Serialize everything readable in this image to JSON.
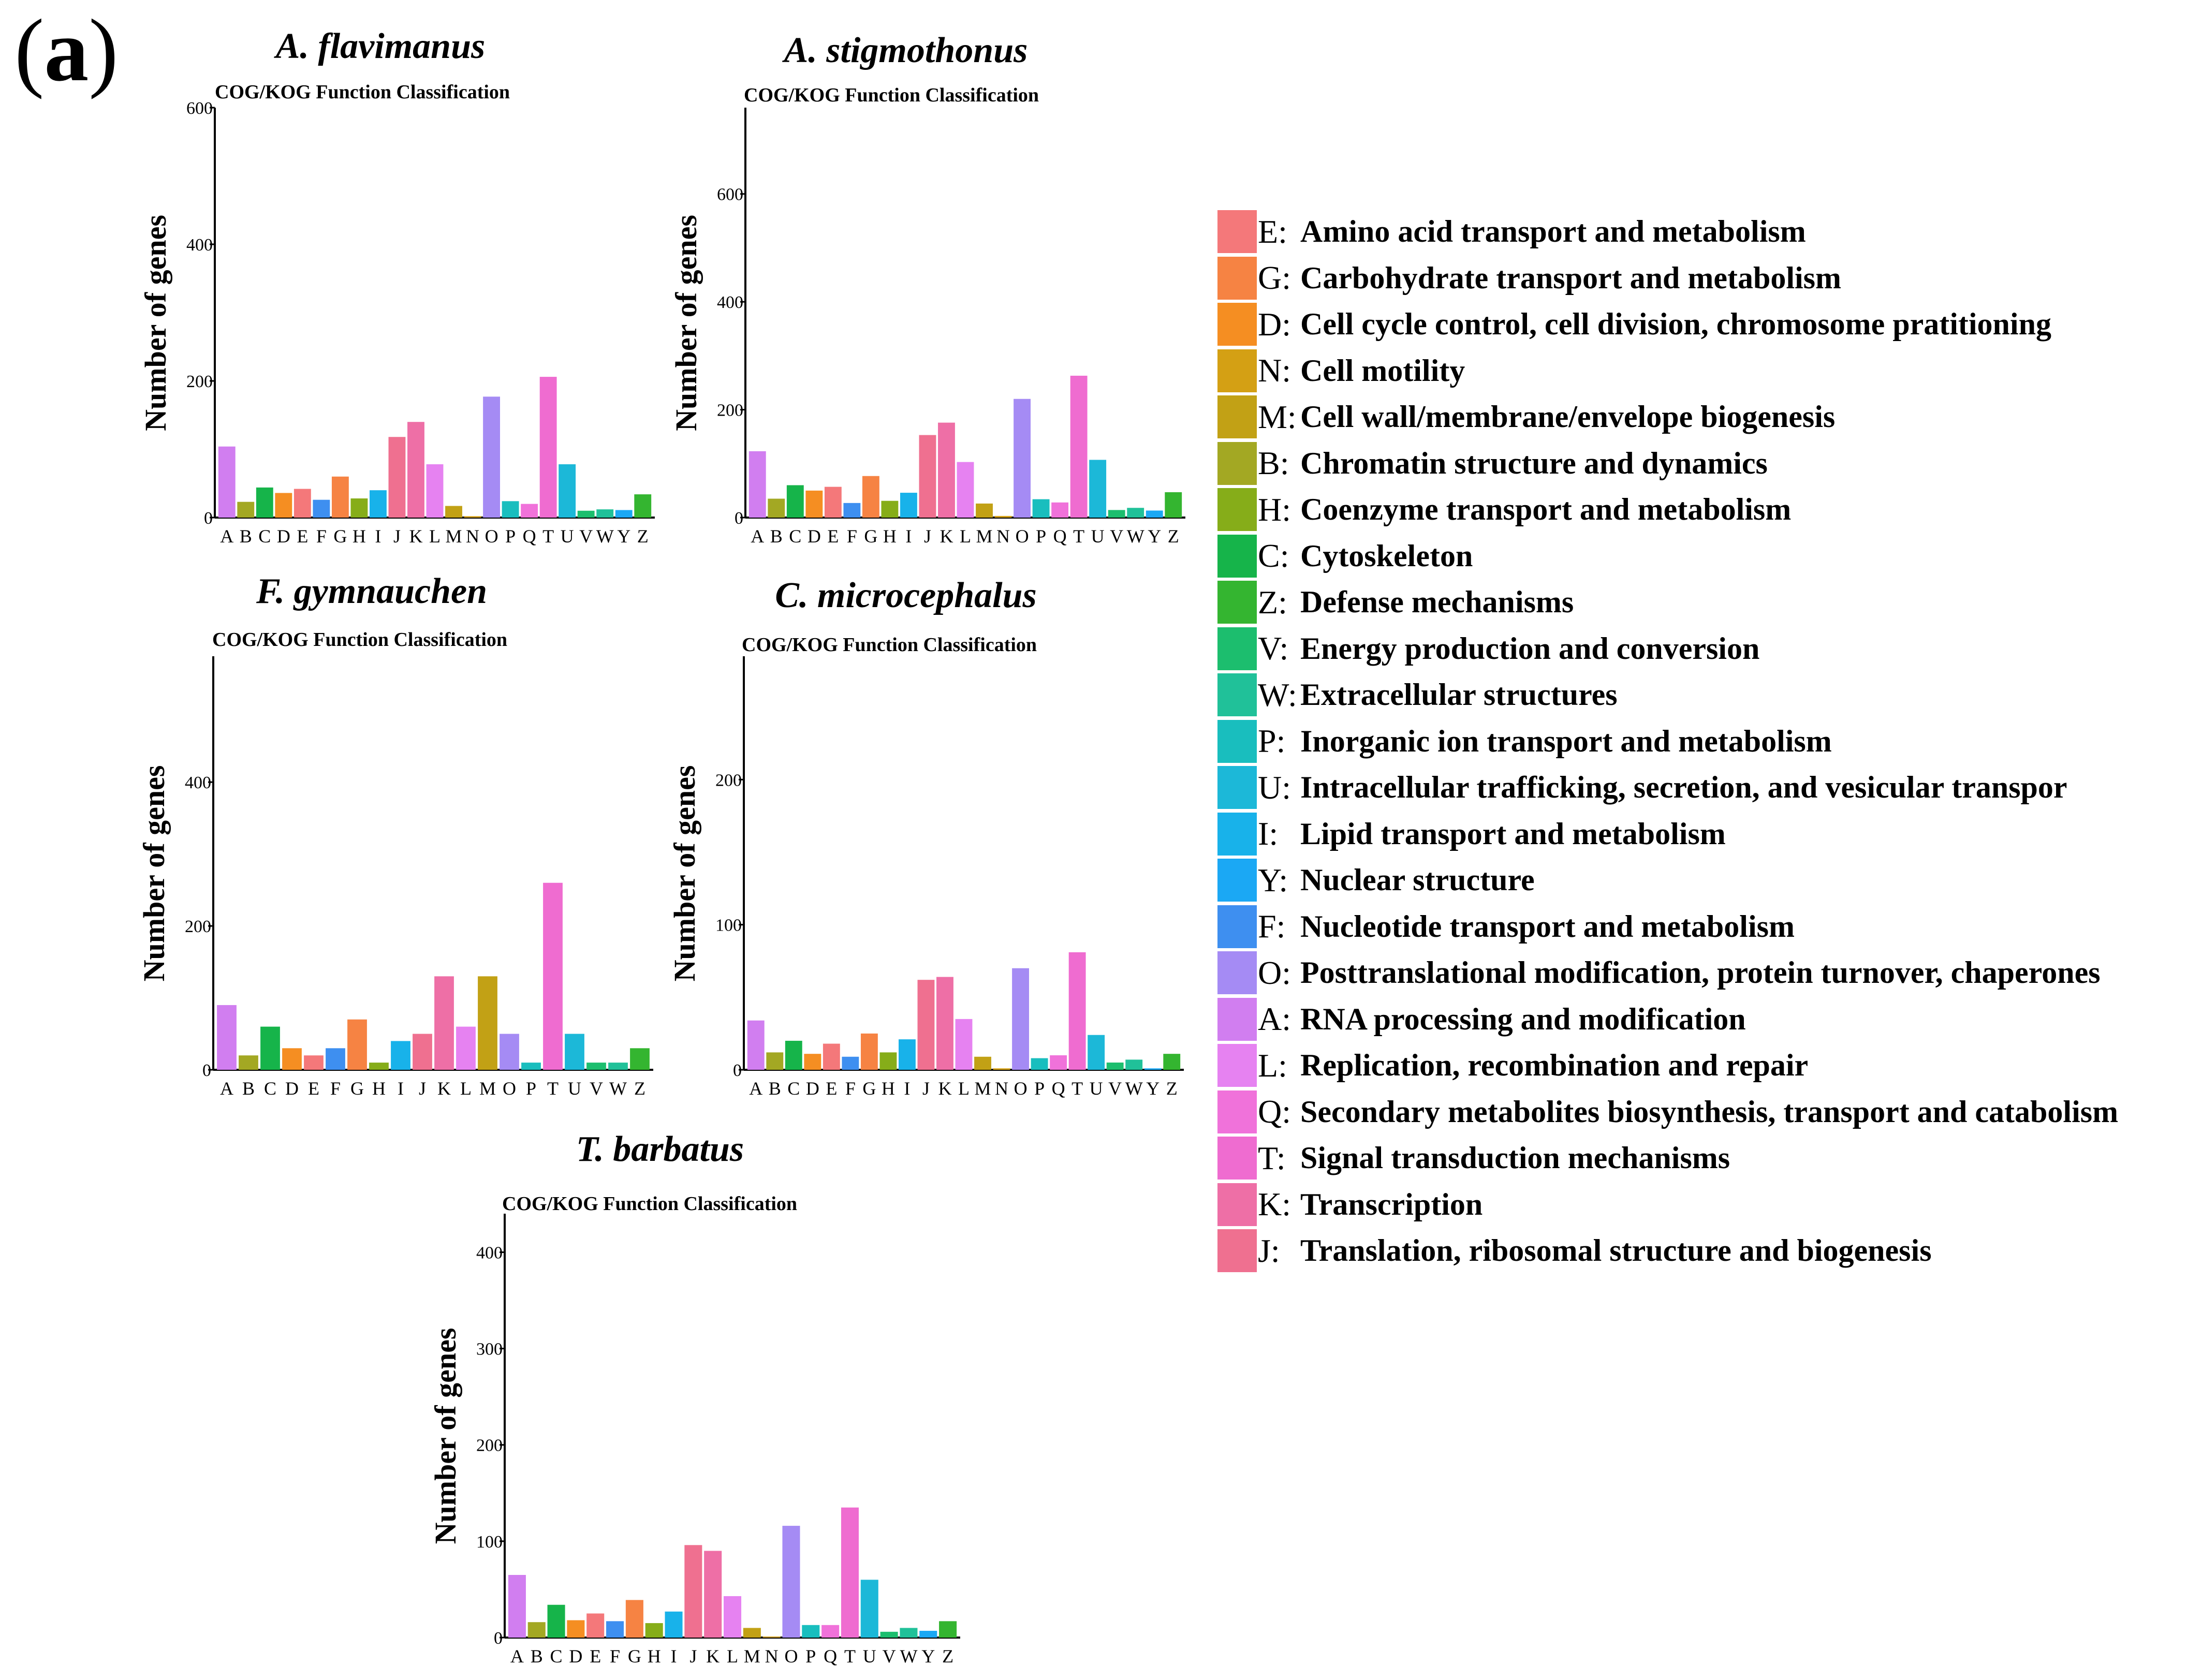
{
  "figure": {
    "panel_label_open": "(",
    "panel_label_letter": "a",
    "panel_label_close": ")"
  },
  "colors": {
    "A": "#D17EF0",
    "B": "#A3A823",
    "C": "#16B44A",
    "D": "#F58E22",
    "E": "#F4787A",
    "F": "#3E8FF0",
    "G": "#F68343",
    "H": "#86AD19",
    "I": "#18B2EA",
    "J": "#EF7090",
    "K": "#EE6FA6",
    "L": "#E682F1",
    "M": "#C2A115",
    "N": "#D4A014",
    "O": "#A58BF4",
    "P": "#19BEBE",
    "Q": "#F072DA",
    "T": "#EF6CD0",
    "U": "#1CB8D8",
    "V": "#1CBE6E",
    "W": "#20C199",
    "Y": "#1BA8F4",
    "Z": "#34B530"
  },
  "chart_data": [
    {
      "type": "bar",
      "species": "A. flavimanus",
      "title": "COG/KOG Function Classification",
      "xlabel": "",
      "ylabel": "Number of genes",
      "ylim": [
        0,
        600
      ],
      "yticks": [
        0,
        200,
        400,
        600
      ],
      "categories": [
        "A",
        "B",
        "C",
        "D",
        "E",
        "F",
        "G",
        "H",
        "I",
        "J",
        "K",
        "L",
        "M",
        "N",
        "O",
        "P",
        "Q",
        "T",
        "U",
        "V",
        "W",
        "Y",
        "Z"
      ],
      "values": [
        104,
        23,
        44,
        36,
        42,
        26,
        60,
        28,
        40,
        118,
        140,
        78,
        17,
        2,
        177,
        24,
        20,
        206,
        78,
        10,
        12,
        11,
        34
      ]
    },
    {
      "type": "bar",
      "species": "A. stigmothonus",
      "title": "COG/KOG Function Classification",
      "xlabel": "",
      "ylabel": "Number of genes",
      "ylim": [
        0,
        760
      ],
      "yticks": [
        0,
        200,
        400,
        600
      ],
      "categories": [
        "A",
        "B",
        "C",
        "D",
        "E",
        "F",
        "G",
        "H",
        "I",
        "J",
        "K",
        "L",
        "M",
        "N",
        "O",
        "P",
        "Q",
        "T",
        "U",
        "V",
        "W",
        "Y",
        "Z"
      ],
      "values": [
        123,
        35,
        60,
        50,
        57,
        27,
        77,
        31,
        46,
        153,
        176,
        103,
        26,
        3,
        220,
        34,
        28,
        263,
        107,
        14,
        18,
        13,
        47
      ]
    },
    {
      "type": "bar",
      "species": "F. gymnauchen",
      "title": "COG/KOG Function Classification",
      "xlabel": "",
      "ylabel": "Number of genes",
      "ylim": [
        0,
        575
      ],
      "yticks": [
        0,
        200,
        400
      ],
      "categories": [
        "A",
        "B",
        "C",
        "D",
        "E",
        "F",
        "G",
        "H",
        "I",
        "J",
        "K",
        "L",
        "M",
        "O",
        "P",
        "T",
        "U",
        "V",
        "W",
        "Z"
      ],
      "values": [
        90,
        20,
        60,
        30,
        20,
        30,
        70,
        10,
        40,
        50,
        130,
        60,
        130,
        50,
        10,
        260,
        50,
        10,
        10,
        30
      ]
    },
    {
      "type": "bar",
      "species": "C. microcephalus",
      "title": "COG/KOG Function Classification",
      "xlabel": "",
      "ylabel": "Number of genes",
      "ylim": [
        0,
        285
      ],
      "yticks": [
        0,
        100,
        200
      ],
      "categories": [
        "A",
        "B",
        "C",
        "D",
        "E",
        "F",
        "G",
        "H",
        "I",
        "J",
        "K",
        "L",
        "M",
        "N",
        "O",
        "P",
        "Q",
        "T",
        "U",
        "V",
        "W",
        "Y",
        "Z"
      ],
      "values": [
        34,
        12,
        20,
        11,
        18,
        9,
        25,
        12,
        21,
        62,
        64,
        35,
        9,
        1,
        70,
        8,
        10,
        81,
        24,
        5,
        7,
        1,
        11
      ]
    },
    {
      "type": "bar",
      "species": "T. barbatus",
      "title": "COG/KOG Function Classification",
      "xlabel": "",
      "ylabel": "Number of genes",
      "ylim": [
        0,
        440
      ],
      "yticks": [
        0,
        100,
        200,
        300,
        400
      ],
      "categories": [
        "A",
        "B",
        "C",
        "D",
        "E",
        "F",
        "G",
        "H",
        "I",
        "J",
        "K",
        "L",
        "M",
        "N",
        "O",
        "P",
        "Q",
        "T",
        "U",
        "V",
        "W",
        "Y",
        "Z"
      ],
      "values": [
        65,
        16,
        34,
        18,
        25,
        17,
        39,
        15,
        27,
        96,
        90,
        43,
        10,
        1,
        116,
        13,
        13,
        135,
        60,
        6,
        10,
        7,
        17
      ]
    }
  ],
  "legend": {
    "position": "right",
    "items": [
      {
        "code": "E:",
        "key": "E",
        "label": "Amino acid transport and metabolism"
      },
      {
        "code": "G:",
        "key": "G",
        "label": "Carbohydrate transport and metabolism"
      },
      {
        "code": "D:",
        "key": "D",
        "label": "Cell cycle control, cell division, chromosome pratitioning"
      },
      {
        "code": "N:",
        "key": "N",
        "label": "Cell motility"
      },
      {
        "code": "M:",
        "key": "M",
        "label": "Cell wall/membrane/envelope biogenesis"
      },
      {
        "code": "B:",
        "key": "B",
        "label": "Chromatin structure and dynamics"
      },
      {
        "code": "H:",
        "key": "H",
        "label": "Coenzyme transport and metabolism"
      },
      {
        "code": "C:",
        "key": "C",
        "label": "Cytoskeleton"
      },
      {
        "code": "Z:",
        "key": "Z",
        "label": "Defense mechanisms"
      },
      {
        "code": "V:",
        "key": "V",
        "label": "Energy production and conversion"
      },
      {
        "code": "W:",
        "key": "W",
        "label": "Extracellular structures"
      },
      {
        "code": "P:",
        "key": "P",
        "label": "Inorganic ion transport and metabolism"
      },
      {
        "code": "U:",
        "key": "U",
        "label": "Intracellular trafficking, secretion, and vesicular transpor"
      },
      {
        "code": "I:",
        "key": "I",
        "label": "Lipid transport and metabolism"
      },
      {
        "code": "Y:",
        "key": "Y",
        "label": "Nuclear structure"
      },
      {
        "code": "F:",
        "key": "F",
        "label": "Nucleotide transport and metabolism"
      },
      {
        "code": "O:",
        "key": "O",
        "label": "Posttranslational modification, protein turnover, chaperones"
      },
      {
        "code": "A:",
        "key": "A",
        "label": "RNA processing and modification"
      },
      {
        "code": "L:",
        "key": "L",
        "label": "Replication, recombination and repair"
      },
      {
        "code": "Q:",
        "key": "Q",
        "label": "Secondary metabolites biosynthesis, transport and catabolism"
      },
      {
        "code": "T:",
        "key": "T",
        "label": "Signal transduction mechanisms"
      },
      {
        "code": "K:",
        "key": "K",
        "label": "Transcription"
      },
      {
        "code": "J:",
        "key": "J",
        "label": "Translation, ribosomal structure and biogenesis"
      }
    ]
  }
}
